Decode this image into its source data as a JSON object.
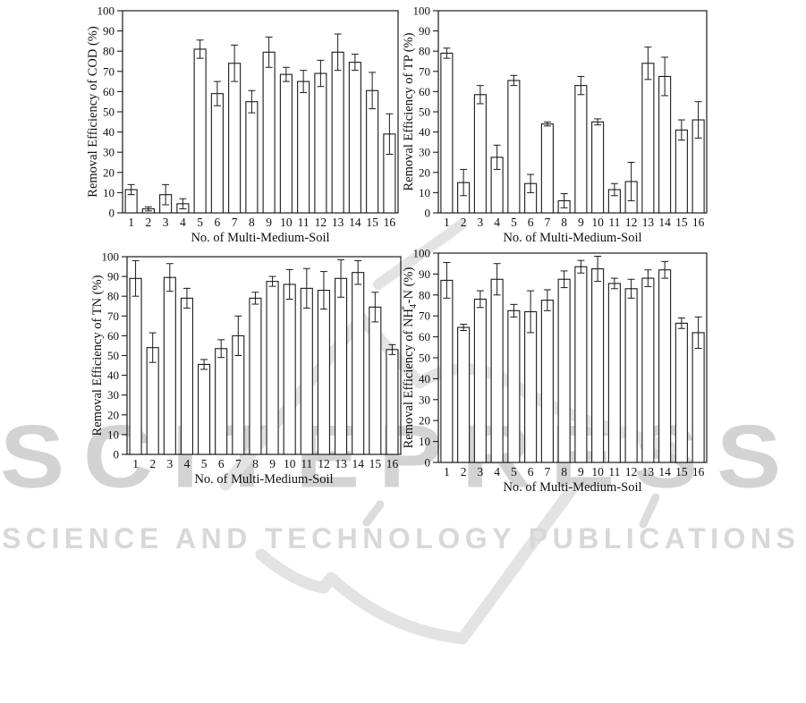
{
  "figure": {
    "watermark": {
      "brand": "SCITEPRESS",
      "tagline": "SCIENCE AND TECHNOLOGY PUBLICATIONS",
      "brand_color": "#d3d3d3",
      "tagline_color": "#d8d8d8",
      "swoosh_color": "#e3e3e3"
    },
    "axis_color": "#1a1a1a",
    "text_color": "#111111",
    "bar_fill": "#ffffff"
  },
  "chart_data": [
    {
      "id": "cod",
      "type": "bar",
      "title": "",
      "xlabel": "No. of  Multi-Medium-Soil",
      "ylabel": "Removal Efficiency of COD (%)",
      "ylabel_parts": [
        {
          "t": "Removal Efficiency of COD (%)"
        }
      ],
      "ylim": [
        0,
        100
      ],
      "ytick_step": 10,
      "grid": false,
      "legend": "none",
      "categories": [
        "1",
        "2",
        "3",
        "4",
        "5",
        "6",
        "7",
        "8",
        "9",
        "10",
        "11",
        "12",
        "13",
        "14",
        "15",
        "16"
      ],
      "values": [
        11.5,
        2,
        9,
        4.5,
        81,
        59,
        74,
        55,
        79.5,
        68.5,
        65,
        69,
        79.5,
        74.5,
        60.5,
        39
      ],
      "errors": [
        2.5,
        1,
        5,
        2.5,
        4.5,
        6,
        9,
        5.5,
        7.5,
        3.5,
        5.5,
        6.5,
        9,
        4,
        9,
        10
      ]
    },
    {
      "id": "tp",
      "type": "bar",
      "title": "",
      "xlabel": "No. of  Multi-Medium-Soil",
      "ylabel": "Removal Efficiency of TP (%)",
      "ylabel_parts": [
        {
          "t": "Removal Efficiency of TP (%)"
        }
      ],
      "ylim": [
        0,
        100
      ],
      "ytick_step": 10,
      "grid": false,
      "legend": "none",
      "categories": [
        "1",
        "2",
        "3",
        "4",
        "5",
        "6",
        "7",
        "8",
        "9",
        "10",
        "11",
        "12",
        "13",
        "14",
        "15",
        "16"
      ],
      "values": [
        79,
        15,
        58.5,
        27.5,
        65.5,
        14.5,
        44,
        6,
        63,
        45,
        11.5,
        15.5,
        74,
        67.5,
        41,
        46
      ],
      "errors": [
        2.5,
        6.5,
        4.5,
        6,
        2.5,
        4.5,
        1,
        3.5,
        4.5,
        1.5,
        3,
        9.5,
        8,
        9.5,
        5,
        9
      ]
    },
    {
      "id": "tn",
      "type": "bar",
      "title": "",
      "xlabel": "No. of  Multi-Medium-Soil",
      "ylabel": "Removal Efficiency of TN (%)",
      "ylabel_parts": [
        {
          "t": "Removal Efficiency of TN (%)"
        }
      ],
      "ylim": [
        0,
        100
      ],
      "ytick_step": 10,
      "grid": false,
      "legend": "none",
      "categories": [
        "1",
        "2",
        "3",
        "4",
        "5",
        "6",
        "7",
        "8",
        "9",
        "10",
        "11",
        "12",
        "13",
        "14",
        "15",
        "16"
      ],
      "values": [
        89,
        54,
        89.5,
        79,
        45.5,
        53.5,
        60,
        79,
        87.5,
        86,
        84,
        83,
        89,
        92,
        74.5,
        53
      ],
      "errors": [
        9,
        7.5,
        7,
        5,
        2.5,
        4.5,
        10,
        3,
        2.5,
        7.5,
        10,
        9.5,
        9.5,
        6,
        7.5,
        2.5
      ]
    },
    {
      "id": "nh4n",
      "type": "bar",
      "title": "",
      "xlabel": "No. of  Multi-Medium-Soil",
      "ylabel": "Removal Efficiency of NH4+-N (%)",
      "ylabel_parts": [
        {
          "t": "Removal Efficiency of NH"
        },
        {
          "t": "4",
          "pos": "sub"
        },
        {
          "t": "+",
          "pos": "sup"
        },
        {
          "t": "-N (%)"
        }
      ],
      "ylim": [
        0,
        100
      ],
      "ytick_step": 10,
      "grid": false,
      "legend": "none",
      "categories": [
        "1",
        "2",
        "3",
        "4",
        "5",
        "6",
        "7",
        "8",
        "9",
        "10",
        "11",
        "12",
        "13",
        "14",
        "15",
        "16"
      ],
      "values": [
        87,
        64.5,
        78,
        87.5,
        72.5,
        72,
        77.5,
        87.5,
        93.5,
        92.5,
        85.5,
        83,
        88,
        92,
        66.5,
        62
      ],
      "errors": [
        8.5,
        1.5,
        4,
        7.5,
        3,
        10,
        5,
        4,
        3,
        6,
        2.5,
        4.5,
        4,
        4,
        2.5,
        7.5
      ]
    }
  ]
}
